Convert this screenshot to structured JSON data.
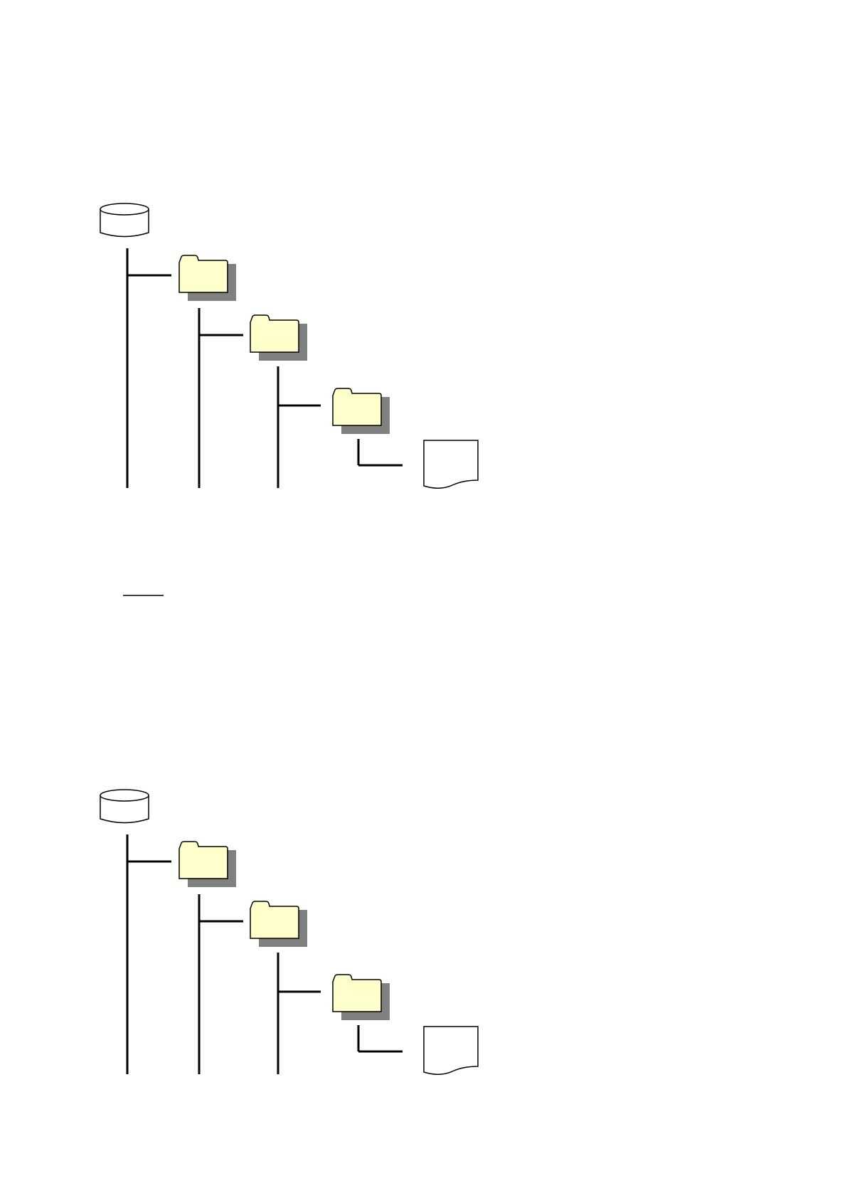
{
  "diagrams": [
    {
      "nodes": [
        "drive",
        "folder",
        "folder",
        "folder",
        "document"
      ]
    },
    {
      "nodes": [
        "drive",
        "folder",
        "folder",
        "folder",
        "document"
      ]
    }
  ],
  "colors": {
    "folder_fill": "#ffffcc",
    "shadow": "#808080",
    "line": "#000000"
  }
}
